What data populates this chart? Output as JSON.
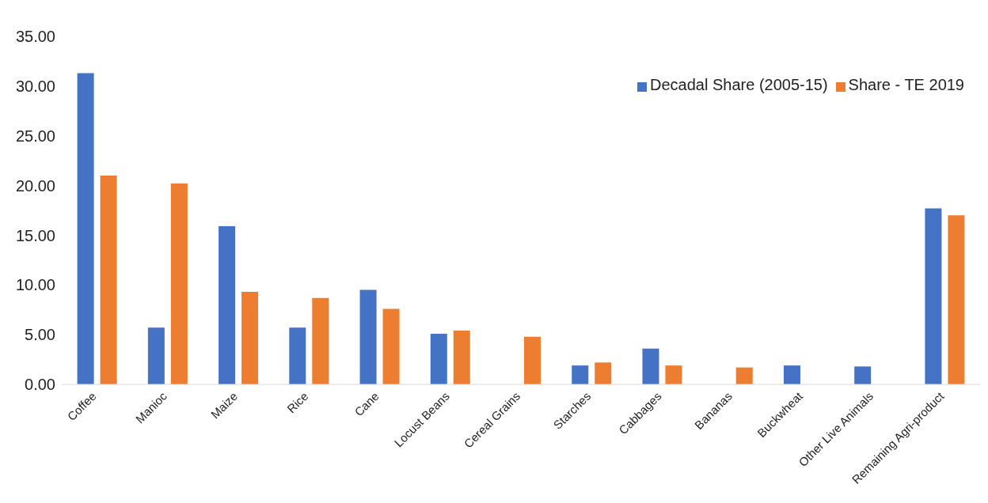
{
  "chart_data": {
    "type": "bar",
    "categories": [
      "Coffee",
      "Manioc",
      "Maize",
      "Rice",
      "Cane",
      "Locust Beans",
      "Cereal Grains",
      "Starches",
      "Cabbages",
      "Bananas",
      "Buckwheat",
      "Other Live Animals",
      "Remaining Agri-product"
    ],
    "series": [
      {
        "name": "Decadal Share (2005-15)",
        "color": "#4472c4",
        "values": [
          31.3,
          5.7,
          15.9,
          5.7,
          9.5,
          5.1,
          null,
          1.9,
          3.6,
          null,
          1.9,
          1.8,
          17.7
        ]
      },
      {
        "name": "Share - TE 2019",
        "color": "#ed7d31",
        "values": [
          21.0,
          20.2,
          9.3,
          8.7,
          7.6,
          5.4,
          4.8,
          2.2,
          1.9,
          1.7,
          null,
          null,
          17.0
        ]
      }
    ],
    "ylim": [
      0,
      35
    ],
    "yticks": [
      {
        "value": 0,
        "label": "0.00"
      },
      {
        "value": 5,
        "label": "5.00"
      },
      {
        "value": 10,
        "label": "10.00"
      },
      {
        "value": 15,
        "label": "15.00"
      },
      {
        "value": 20,
        "label": "20.00"
      },
      {
        "value": 25,
        "label": "25.00"
      },
      {
        "value": 30,
        "label": "30.00"
      },
      {
        "value": 35,
        "label": "35.00"
      }
    ],
    "grid": false,
    "legend": "top right"
  }
}
